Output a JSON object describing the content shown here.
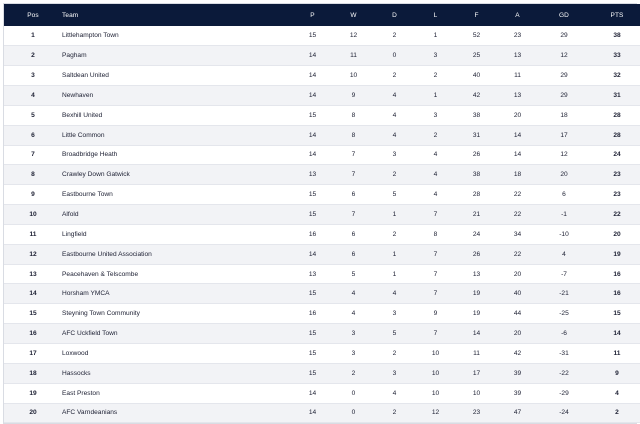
{
  "header": {
    "pos": "Pos",
    "team": "Team",
    "p": "P",
    "w": "W",
    "d": "D",
    "l": "L",
    "f": "F",
    "a": "A",
    "gd": "GD",
    "pts": "PTS"
  },
  "colors": {
    "header_bg": "#0b1a3a",
    "row_alt": "#f2f3f6"
  },
  "rows": [
    {
      "pos": "1",
      "team": "Littlehampton Town",
      "p": "15",
      "w": "12",
      "d": "2",
      "l": "1",
      "f": "52",
      "a": "23",
      "gd": "29",
      "pts": "38"
    },
    {
      "pos": "2",
      "team": "Pagham",
      "p": "14",
      "w": "11",
      "d": "0",
      "l": "3",
      "f": "25",
      "a": "13",
      "gd": "12",
      "pts": "33"
    },
    {
      "pos": "3",
      "team": "Saltdean United",
      "p": "14",
      "w": "10",
      "d": "2",
      "l": "2",
      "f": "40",
      "a": "11",
      "gd": "29",
      "pts": "32"
    },
    {
      "pos": "4",
      "team": "Newhaven",
      "p": "14",
      "w": "9",
      "d": "4",
      "l": "1",
      "f": "42",
      "a": "13",
      "gd": "29",
      "pts": "31"
    },
    {
      "pos": "5",
      "team": "Bexhill United",
      "p": "15",
      "w": "8",
      "d": "4",
      "l": "3",
      "f": "38",
      "a": "20",
      "gd": "18",
      "pts": "28"
    },
    {
      "pos": "6",
      "team": "Little Common",
      "p": "14",
      "w": "8",
      "d": "4",
      "l": "2",
      "f": "31",
      "a": "14",
      "gd": "17",
      "pts": "28"
    },
    {
      "pos": "7",
      "team": "Broadbridge Heath",
      "p": "14",
      "w": "7",
      "d": "3",
      "l": "4",
      "f": "26",
      "a": "14",
      "gd": "12",
      "pts": "24"
    },
    {
      "pos": "8",
      "team": "Crawley Down Gatwick",
      "p": "13",
      "w": "7",
      "d": "2",
      "l": "4",
      "f": "38",
      "a": "18",
      "gd": "20",
      "pts": "23"
    },
    {
      "pos": "9",
      "team": "Eastbourne Town",
      "p": "15",
      "w": "6",
      "d": "5",
      "l": "4",
      "f": "28",
      "a": "22",
      "gd": "6",
      "pts": "23"
    },
    {
      "pos": "10",
      "team": "Alfold",
      "p": "15",
      "w": "7",
      "d": "1",
      "l": "7",
      "f": "21",
      "a": "22",
      "gd": "-1",
      "pts": "22"
    },
    {
      "pos": "11",
      "team": "Lingfield",
      "p": "16",
      "w": "6",
      "d": "2",
      "l": "8",
      "f": "24",
      "a": "34",
      "gd": "-10",
      "pts": "20"
    },
    {
      "pos": "12",
      "team": "Eastbourne United Association",
      "p": "14",
      "w": "6",
      "d": "1",
      "l": "7",
      "f": "26",
      "a": "22",
      "gd": "4",
      "pts": "19"
    },
    {
      "pos": "13",
      "team": "Peacehaven & Telscombe",
      "p": "13",
      "w": "5",
      "d": "1",
      "l": "7",
      "f": "13",
      "a": "20",
      "gd": "-7",
      "pts": "16"
    },
    {
      "pos": "14",
      "team": "Horsham YMCA",
      "p": "15",
      "w": "4",
      "d": "4",
      "l": "7",
      "f": "19",
      "a": "40",
      "gd": "-21",
      "pts": "16"
    },
    {
      "pos": "15",
      "team": "Steyning Town Community",
      "p": "16",
      "w": "4",
      "d": "3",
      "l": "9",
      "f": "19",
      "a": "44",
      "gd": "-25",
      "pts": "15"
    },
    {
      "pos": "16",
      "team": "AFC Uckfield Town",
      "p": "15",
      "w": "3",
      "d": "5",
      "l": "7",
      "f": "14",
      "a": "20",
      "gd": "-6",
      "pts": "14"
    },
    {
      "pos": "17",
      "team": "Loxwood",
      "p": "15",
      "w": "3",
      "d": "2",
      "l": "10",
      "f": "11",
      "a": "42",
      "gd": "-31",
      "pts": "11"
    },
    {
      "pos": "18",
      "team": "Hassocks",
      "p": "15",
      "w": "2",
      "d": "3",
      "l": "10",
      "f": "17",
      "a": "39",
      "gd": "-22",
      "pts": "9"
    },
    {
      "pos": "19",
      "team": "East Preston",
      "p": "14",
      "w": "0",
      "d": "4",
      "l": "10",
      "f": "10",
      "a": "39",
      "gd": "-29",
      "pts": "4"
    },
    {
      "pos": "20",
      "team": "AFC Varndeanians",
      "p": "14",
      "w": "0",
      "d": "2",
      "l": "12",
      "f": "23",
      "a": "47",
      "gd": "-24",
      "pts": "2"
    }
  ]
}
